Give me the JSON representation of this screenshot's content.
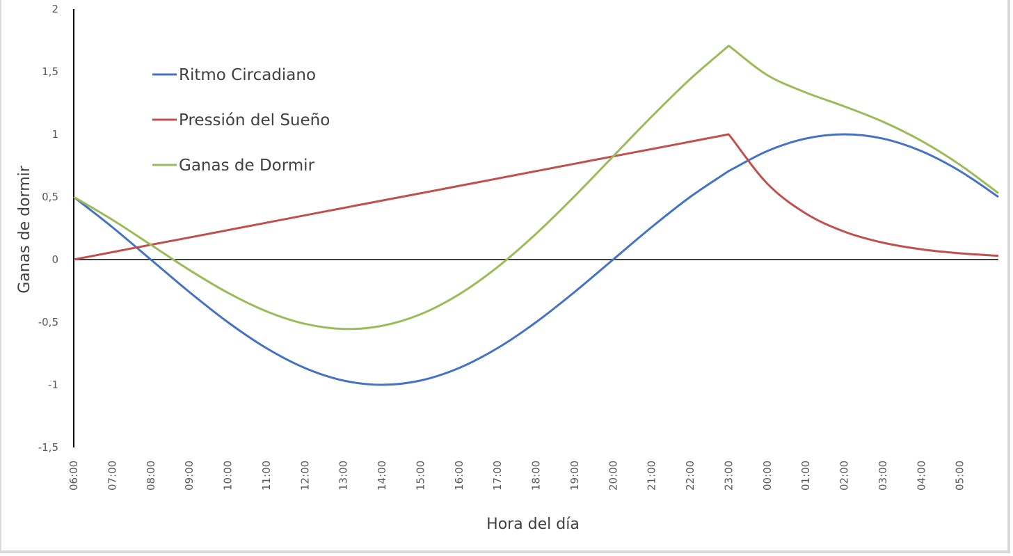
{
  "chart_data": {
    "type": "line",
    "title": "",
    "xlabel": "Hora del día",
    "ylabel": "Ganas de dormir",
    "ylim": [
      -1.5,
      2
    ],
    "yticks": [
      2,
      1.5,
      1,
      0.5,
      0,
      -0.5,
      -1,
      -1.5
    ],
    "ytick_labels": [
      "2",
      "1,5",
      "1",
      "0,5",
      "0",
      "-0,5",
      "-1",
      "-1,5"
    ],
    "grid": false,
    "legend_position": "upper-left-inside",
    "categories": [
      "06:00",
      "07:00",
      "08:00",
      "09:00",
      "10:00",
      "11:00",
      "12:00",
      "13:00",
      "14:00",
      "15:00",
      "16:00",
      "17:00",
      "18:00",
      "19:00",
      "20:00",
      "21:00",
      "22:00",
      "23:00",
      "00:00",
      "01:00",
      "02:00",
      "03:00",
      "04:00",
      "05:00",
      "06:00"
    ],
    "x_tick_labels": [
      "06:00",
      "07:00",
      "08:00",
      "09:00",
      "10:00",
      "11:00",
      "12:00",
      "13:00",
      "14:00",
      "15:00",
      "16:00",
      "17:00",
      "18:00",
      "19:00",
      "20:00",
      "21:00",
      "22:00",
      "23:00",
      "00:00",
      "01:00",
      "02:00",
      "03:00",
      "04:00",
      "05:00"
    ],
    "series": [
      {
        "name": "Ritmo Circadiano",
        "color": "#4472c4",
        "values": [
          0.5,
          0.259,
          0.0,
          -0.259,
          -0.5,
          -0.707,
          -0.866,
          -0.966,
          -1.0,
          -0.966,
          -0.866,
          -0.707,
          -0.5,
          -0.259,
          0.0,
          0.259,
          0.5,
          0.707,
          0.866,
          0.966,
          1.0,
          0.966,
          0.866,
          0.707,
          0.5
        ]
      },
      {
        "name": "Pressión del Sueño",
        "color": "#c0504d",
        "values": [
          0.0,
          0.059,
          0.118,
          0.176,
          0.235,
          0.294,
          0.353,
          0.412,
          0.471,
          0.529,
          0.588,
          0.647,
          0.706,
          0.765,
          0.824,
          0.882,
          0.941,
          1.0,
          0.607,
          0.368,
          0.223,
          0.135,
          0.082,
          0.05,
          0.03
        ]
      },
      {
        "name": "Ganas de Dormir",
        "color": "#9bbb59",
        "values": [
          0.5,
          0.318,
          0.118,
          -0.083,
          -0.265,
          -0.413,
          -0.513,
          -0.554,
          -0.529,
          -0.437,
          -0.278,
          -0.06,
          0.206,
          0.506,
          0.824,
          1.141,
          1.441,
          1.707,
          1.473,
          1.334,
          1.223,
          1.101,
          0.948,
          0.757,
          0.53
        ]
      }
    ]
  }
}
